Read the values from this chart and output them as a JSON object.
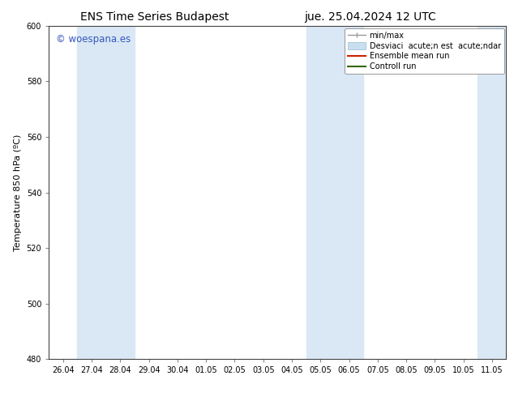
{
  "title_left": "ENS Time Series Budapest",
  "title_right": "jue. 25.04.2024 12 UTC",
  "ylabel": "Temperature 850 hPa (ºC)",
  "ylim": [
    480,
    600
  ],
  "yticks": [
    480,
    500,
    520,
    540,
    560,
    580,
    600
  ],
  "xtick_labels": [
    "26.04",
    "27.04",
    "28.04",
    "29.04",
    "30.04",
    "01.05",
    "02.05",
    "03.05",
    "04.05",
    "05.05",
    "06.05",
    "07.05",
    "08.05",
    "09.05",
    "10.05",
    "11.05"
  ],
  "bg_color": "#ffffff",
  "plot_bg_color": "#ffffff",
  "shaded_bands": [
    {
      "xstart": 1,
      "xend": 3,
      "color": "#dae8f5"
    },
    {
      "xstart": 9,
      "xend": 11,
      "color": "#dae8f5"
    },
    {
      "xstart": 15,
      "xend": 16,
      "color": "#dae8f5"
    }
  ],
  "watermark_text": "© woespana.es",
  "watermark_color": "#3355bb",
  "legend_labels": [
    "min/max",
    "Desviaci  acute;n est  acute;ndar",
    "Ensemble mean run",
    "Controll run"
  ],
  "legend_colors_line": [
    "#999999",
    "#bbccdd",
    "#cc2200",
    "#336600"
  ],
  "title_fontsize": 10,
  "tick_fontsize": 7,
  "ylabel_fontsize": 8,
  "watermark_fontsize": 8.5,
  "legend_fontsize": 7
}
